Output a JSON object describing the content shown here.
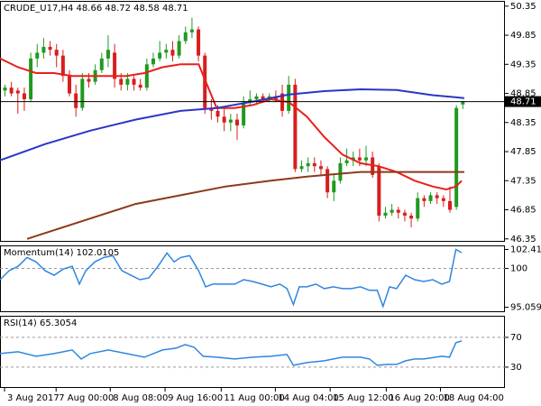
{
  "chart_data": [
    {
      "type": "candlestick",
      "title": "CRUDE_U17,H4 48.66 48.72 48.58 48.71",
      "up_color": "#1f9a1f",
      "down_color": "#d81e1e",
      "ohlc": [
        [
          48.9,
          49.0,
          48.8,
          48.95
        ],
        [
          48.95,
          49.05,
          48.8,
          48.85
        ],
        [
          48.9,
          48.95,
          48.5,
          48.85
        ],
        [
          48.85,
          48.95,
          48.55,
          48.75
        ],
        [
          48.75,
          49.55,
          48.7,
          49.45
        ],
        [
          49.45,
          49.7,
          49.3,
          49.55
        ],
        [
          49.55,
          49.8,
          49.45,
          49.65
        ],
        [
          49.65,
          49.75,
          49.5,
          49.6
        ],
        [
          49.6,
          49.7,
          49.3,
          49.5
        ],
        [
          49.5,
          49.6,
          49.05,
          49.15
        ],
        [
          49.15,
          49.25,
          48.8,
          48.85
        ],
        [
          48.85,
          49.0,
          48.45,
          48.6
        ],
        [
          48.6,
          49.2,
          48.55,
          49.1
        ],
        [
          49.1,
          49.2,
          48.95,
          49.05
        ],
        [
          49.05,
          49.35,
          49.0,
          49.25
        ],
        [
          49.25,
          49.55,
          49.2,
          49.45
        ],
        [
          49.45,
          49.85,
          49.3,
          49.6
        ],
        [
          49.55,
          49.7,
          48.95,
          49.1
        ],
        [
          49.1,
          49.2,
          48.9,
          49.0
        ],
        [
          49.0,
          49.2,
          48.9,
          49.1
        ],
        [
          49.1,
          49.15,
          48.9,
          49.0
        ],
        [
          49.0,
          49.1,
          48.9,
          48.95
        ],
        [
          48.95,
          49.45,
          48.9,
          49.35
        ],
        [
          49.35,
          49.55,
          49.3,
          49.45
        ],
        [
          49.45,
          49.75,
          49.4,
          49.55
        ],
        [
          49.55,
          49.7,
          49.45,
          49.6
        ],
        [
          49.6,
          49.75,
          49.4,
          49.5
        ],
        [
          49.5,
          49.85,
          49.45,
          49.75
        ],
        [
          49.75,
          50.0,
          49.7,
          49.9
        ],
        [
          49.9,
          50.15,
          49.8,
          49.95
        ],
        [
          49.95,
          50.0,
          49.4,
          49.5
        ],
        [
          49.5,
          49.55,
          48.5,
          48.6
        ],
        [
          48.6,
          48.75,
          48.4,
          48.55
        ],
        [
          48.55,
          48.65,
          48.35,
          48.45
        ],
        [
          48.45,
          48.6,
          48.2,
          48.35
        ],
        [
          48.35,
          48.5,
          48.2,
          48.4
        ],
        [
          48.4,
          48.5,
          48.05,
          48.3
        ],
        [
          48.3,
          48.8,
          48.25,
          48.7
        ],
        [
          48.7,
          48.9,
          48.65,
          48.75
        ],
        [
          48.75,
          48.85,
          48.65,
          48.8
        ],
        [
          48.8,
          48.85,
          48.7,
          48.75
        ],
        [
          48.75,
          48.85,
          48.7,
          48.8
        ],
        [
          48.8,
          48.9,
          48.7,
          48.75
        ],
        [
          48.85,
          49.0,
          48.45,
          48.55
        ],
        [
          48.55,
          49.15,
          48.5,
          49.0
        ],
        [
          49.0,
          49.1,
          47.5,
          47.55
        ],
        [
          47.55,
          47.7,
          47.5,
          47.6
        ],
        [
          47.6,
          47.75,
          47.5,
          47.65
        ],
        [
          47.65,
          47.75,
          47.5,
          47.6
        ],
        [
          47.6,
          47.7,
          47.45,
          47.55
        ],
        [
          47.55,
          47.6,
          47.05,
          47.15
        ],
        [
          47.15,
          47.45,
          47.0,
          47.35
        ],
        [
          47.35,
          47.75,
          47.3,
          47.65
        ],
        [
          47.65,
          47.9,
          47.6,
          47.7
        ],
        [
          47.7,
          47.85,
          47.6,
          47.75
        ],
        [
          47.75,
          47.9,
          47.6,
          47.7
        ],
        [
          47.7,
          47.95,
          47.6,
          47.75
        ],
        [
          47.75,
          47.85,
          47.4,
          47.45
        ],
        [
          47.6,
          47.65,
          46.65,
          46.75
        ],
        [
          46.75,
          46.9,
          46.7,
          46.8
        ],
        [
          46.8,
          46.95,
          46.75,
          46.85
        ],
        [
          46.85,
          46.9,
          46.7,
          46.8
        ],
        [
          46.8,
          46.85,
          46.65,
          46.75
        ],
        [
          46.75,
          46.8,
          46.55,
          46.7
        ],
        [
          46.7,
          47.15,
          46.65,
          47.05
        ],
        [
          47.05,
          47.1,
          46.9,
          47.0
        ],
        [
          47.0,
          47.15,
          46.95,
          47.1
        ],
        [
          47.1,
          47.15,
          46.95,
          47.05
        ],
        [
          47.05,
          47.1,
          46.9,
          47.0
        ],
        [
          47.0,
          47.25,
          46.8,
          46.85
        ],
        [
          46.9,
          48.65,
          46.85,
          48.6
        ],
        [
          48.66,
          48.72,
          48.58,
          48.71
        ]
      ],
      "lines": [
        {
          "color": "#e8201c",
          "x": [
            -0.7,
            2.1,
            4.9,
            7.7,
            10.5,
            13.3,
            16.1,
            18.9,
            21.7,
            24.5,
            27.3,
            30.1,
            32.9,
            35.7,
            38.5,
            41.3,
            44.1,
            46.9,
            49.6,
            52.4,
            55.2,
            58,
            60.8,
            63.6,
            66.4,
            68.5,
            70,
            70.9
          ],
          "values": [
            49.45,
            49.3,
            49.2,
            49.2,
            49.15,
            49.15,
            49.15,
            49.15,
            49.2,
            49.3,
            49.35,
            49.35,
            48.6,
            48.6,
            48.65,
            48.75,
            48.7,
            48.45,
            48.1,
            47.8,
            47.65,
            47.6,
            47.5,
            47.35,
            47.25,
            47.2,
            47.25,
            47.35
          ]
        },
        {
          "color": "#2a35c8",
          "x": [
            -0.7,
            6.3,
            13.3,
            20.3,
            27.3,
            32.9,
            38.5,
            44.1,
            49.6,
            55.2,
            60.8,
            66.4,
            71.3
          ],
          "values": [
            47.7,
            47.98,
            48.21,
            48.4,
            48.55,
            48.6,
            48.71,
            48.83,
            48.89,
            48.92,
            48.91,
            48.82,
            48.77
          ]
        },
        {
          "color": "#8b3a1a",
          "x": [
            3.5,
            7.7,
            13.3,
            20.3,
            27.3,
            34.3,
            41.3,
            46.9,
            55.2,
            63.6,
            71.3
          ],
          "values": [
            46.35,
            46.5,
            46.7,
            46.95,
            47.1,
            47.25,
            47.35,
            47.42,
            47.5,
            47.5,
            47.5
          ]
        }
      ],
      "last_price": 48.71,
      "xlim": [
        -0.7,
        77.6
      ],
      "ylim": [
        46.3,
        50.44
      ],
      "yticks": [
        50.35,
        49.85,
        49.35,
        48.85,
        48.35,
        47.85,
        47.35,
        46.85,
        46.35
      ],
      "xticks": [
        {
          "value": 0,
          "label": "3 Aug 2017"
        },
        {
          "value": 8,
          "label": "7 Aug 00:00"
        },
        {
          "value": 16.4,
          "label": "8 Aug 08:00"
        },
        {
          "value": 24.9,
          "label": "9 Aug 16:00"
        },
        {
          "value": 33.6,
          "label": "11 Aug 00:00"
        },
        {
          "value": 42,
          "label": "14 Aug 04:00"
        },
        {
          "value": 50.5,
          "label": "15 Aug 12:00"
        },
        {
          "value": 59.2,
          "label": "16 Aug 20:00"
        },
        {
          "value": 67.6,
          "label": "18 Aug 04:00"
        }
      ]
    },
    {
      "type": "line",
      "title": "Momentum(14) 102.0105",
      "color": "#2f86e0",
      "x": [
        -0.7,
        0.7,
        2.1,
        3.5,
        4.9,
        6.3,
        7.7,
        9.1,
        10.5,
        11.6,
        12.6,
        14,
        15.4,
        16.8,
        18.2,
        19.6,
        21,
        22.4,
        23.8,
        25.2,
        26.3,
        27.3,
        28.7,
        30.1,
        31.2,
        32.3,
        34.3,
        35.7,
        37.1,
        38.5,
        39.9,
        41.3,
        42.7,
        43.8,
        44.8,
        45.7,
        46.9,
        48.3,
        49.6,
        51,
        52.4,
        53.8,
        55.2,
        56.6,
        57.8,
        58.7,
        59.7,
        60.8,
        62.2,
        63.6,
        65,
        66.4,
        67.8,
        69,
        70,
        70.9
      ],
      "values": [
        98.57,
        99.7,
        100.26,
        101.39,
        100.83,
        99.7,
        99.13,
        99.92,
        100.26,
        98.0,
        99.7,
        100.83,
        101.39,
        101.62,
        99.7,
        99.13,
        98.57,
        98.79,
        100.26,
        101.96,
        100.83,
        101.39,
        101.62,
        99.7,
        97.66,
        98.0,
        98.0,
        98.0,
        98.57,
        98.34,
        98.0,
        97.66,
        98.0,
        97.43,
        95.4,
        97.66,
        97.66,
        98.0,
        97.43,
        97.66,
        97.43,
        97.43,
        97.66,
        97.21,
        97.21,
        95.17,
        97.66,
        97.43,
        99.13,
        98.57,
        98.34,
        98.57,
        98.0,
        98.34,
        102.41,
        102.0105
      ],
      "ylim": [
        94.43,
        102.93
      ],
      "yticks": [
        102.4114,
        100,
        95.0592
      ],
      "levels": [
        100
      ]
    },
    {
      "type": "line",
      "title": "RSI(14) 65.3054",
      "color": "#2f86e0",
      "x": [
        -0.7,
        2.1,
        4.9,
        7.7,
        10.5,
        11.9,
        13.3,
        16.1,
        18.9,
        21.7,
        24.5,
        26.6,
        28,
        29.4,
        30.8,
        32.9,
        35.7,
        38.5,
        41.3,
        43.8,
        44.8,
        46.9,
        49.6,
        52.4,
        55.2,
        56.6,
        57.8,
        59.4,
        60.8,
        62.2,
        63.6,
        65,
        67.8,
        69,
        70,
        70.9
      ],
      "values": [
        48.2,
        50.6,
        44.5,
        48.2,
        53.0,
        40.9,
        48.2,
        53.0,
        48.2,
        43.3,
        53.0,
        55.5,
        60.3,
        56.7,
        44.5,
        43.3,
        40.9,
        43.3,
        44.5,
        47.0,
        32.4,
        36.1,
        38.5,
        43.3,
        43.3,
        40.9,
        32.4,
        33.6,
        33.6,
        38.5,
        40.9,
        40.9,
        44.5,
        43.3,
        62.7,
        65.3054
      ],
      "ylim": [
        2,
        99
      ],
      "yticks": [
        70,
        30
      ],
      "levels": [
        70,
        30
      ]
    }
  ]
}
